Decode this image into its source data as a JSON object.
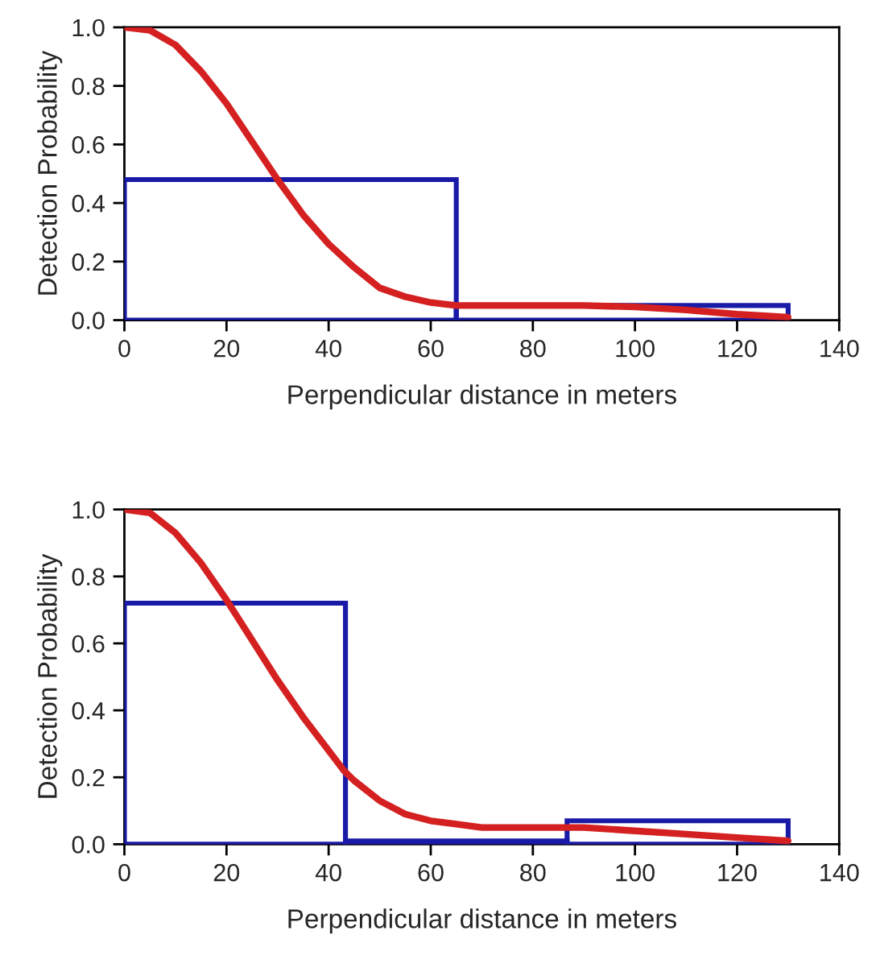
{
  "chart_data": [
    {
      "type": "histogram",
      "bins": [
        0,
        65,
        130
      ],
      "values": [
        0.48,
        0.05
      ],
      "color": "#1a1aa8",
      "xlabel": "Perpendicular distance in meters",
      "ylabel": "Detection Probability",
      "xlim": [
        0,
        140
      ],
      "ylim": [
        0,
        1.0
      ],
      "xticks": [
        0,
        20,
        40,
        60,
        80,
        100,
        120,
        140
      ],
      "yticks": [
        {
          "value": 0,
          "label": "0.0"
        },
        {
          "value": 0.2,
          "label": "0.2"
        },
        {
          "value": 0.4,
          "label": "0.4"
        },
        {
          "value": 0.6,
          "label": "0.6"
        },
        {
          "value": 0.8,
          "label": "0.8"
        },
        {
          "value": 1.0,
          "label": "1.0"
        }
      ],
      "grid": false,
      "series": [
        {
          "type": "line",
          "color": "#d42020",
          "x": [
            0,
            5,
            10,
            15,
            20,
            25,
            30,
            35,
            40,
            45,
            50,
            55,
            60,
            65,
            70,
            80,
            90,
            100,
            110,
            120,
            130
          ],
          "values": [
            1.0,
            0.99,
            0.94,
            0.85,
            0.74,
            0.61,
            0.48,
            0.36,
            0.26,
            0.18,
            0.11,
            0.08,
            0.06,
            0.05,
            0.05,
            0.05,
            0.05,
            0.045,
            0.035,
            0.02,
            0.01
          ]
        }
      ]
    },
    {
      "type": "histogram",
      "bins": [
        0,
        43.3,
        86.7,
        130
      ],
      "values": [
        0.72,
        0.01,
        0.07
      ],
      "color": "#1a1aa8",
      "xlabel": "Perpendicular distance in meters",
      "ylabel": "Detection Probability",
      "xlim": [
        0,
        140
      ],
      "ylim": [
        0,
        1.0
      ],
      "xticks": [
        0,
        20,
        40,
        60,
        80,
        100,
        120,
        140
      ],
      "yticks": [
        {
          "value": 0,
          "label": "0.0"
        },
        {
          "value": 0.2,
          "label": "0.2"
        },
        {
          "value": 0.4,
          "label": "0.4"
        },
        {
          "value": 0.6,
          "label": "0.6"
        },
        {
          "value": 0.8,
          "label": "0.8"
        },
        {
          "value": 1.0,
          "label": "1.0"
        }
      ],
      "grid": false,
      "series": [
        {
          "type": "line",
          "color": "#d42020",
          "x": [
            0,
            5,
            10,
            15,
            20,
            25,
            30,
            35,
            40,
            43,
            45,
            50,
            55,
            60,
            65,
            70,
            80,
            90,
            100,
            110,
            120,
            130
          ],
          "values": [
            1.0,
            0.99,
            0.93,
            0.84,
            0.73,
            0.61,
            0.49,
            0.38,
            0.28,
            0.22,
            0.19,
            0.13,
            0.09,
            0.07,
            0.06,
            0.05,
            0.05,
            0.05,
            0.04,
            0.03,
            0.02,
            0.01
          ]
        }
      ]
    }
  ]
}
